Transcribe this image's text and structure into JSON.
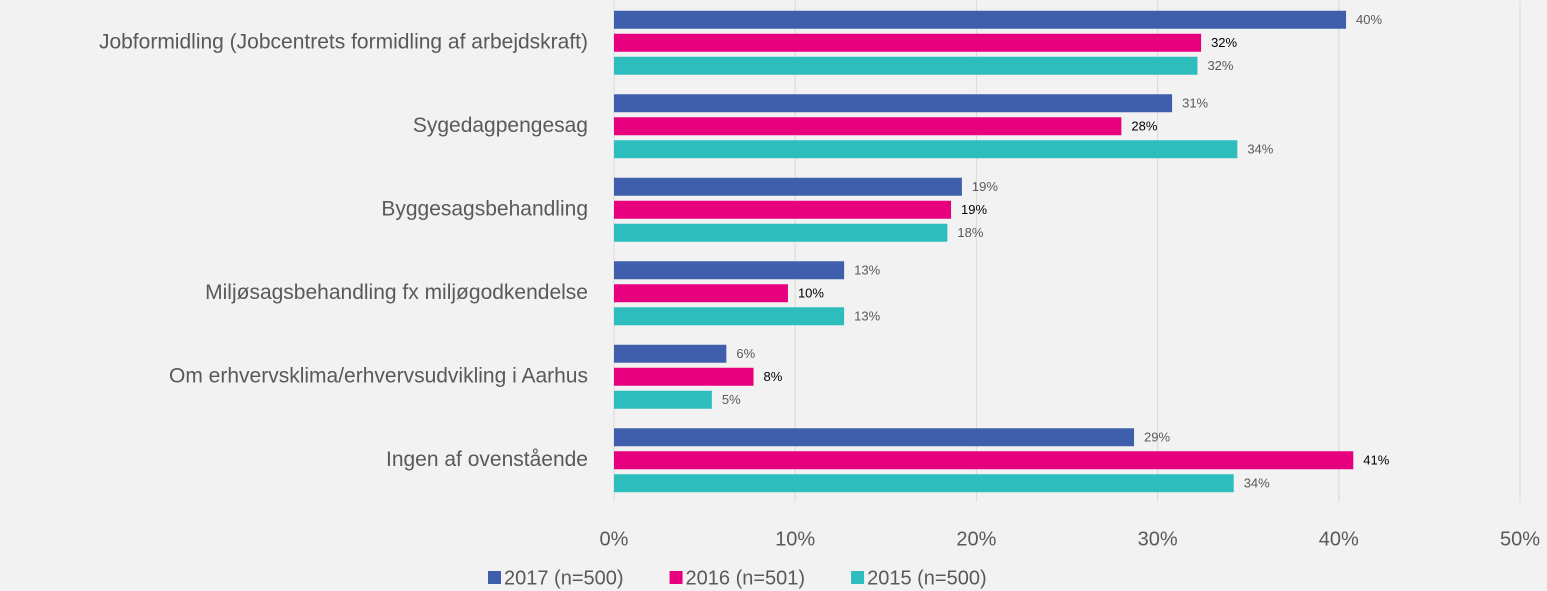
{
  "chart_data": {
    "type": "bar",
    "orientation": "horizontal",
    "categories": [
      "Jobformidling (Jobcentrets formidling af arbejdskraft)",
      "Sygedagpengesag",
      "Byggesagsbehandling",
      "Miljøsagsbehandling fx miljøgodkendelse",
      "Om erhvervsklima/erhvervsudvikling i Aarhus",
      "Ingen af ovenstående"
    ],
    "series": [
      {
        "name": "2017 (n=500)",
        "color": "#3f5fad",
        "values": [
          40.4,
          30.8,
          19.2,
          12.7,
          6.2,
          28.7
        ],
        "value_labels": [
          "40%",
          "31%",
          "19%",
          "13%",
          "6%",
          "29%"
        ]
      },
      {
        "name": "2016 (n=501)",
        "color": "#e6007e",
        "values": [
          32.4,
          28.0,
          18.6,
          9.6,
          7.7,
          40.8
        ],
        "value_labels": [
          "32%",
          "28%",
          "19%",
          "10%",
          "8%",
          "41%"
        ]
      },
      {
        "name": "2015 (n=500)",
        "color": "#2ebdbd",
        "values": [
          32.2,
          34.4,
          18.4,
          12.7,
          5.4,
          34.2
        ],
        "value_labels": [
          "32%",
          "34%",
          "18%",
          "13%",
          "5%",
          "34%"
        ]
      }
    ],
    "xlim": [
      0,
      50
    ],
    "xticks": [
      {
        "value": 0,
        "label": "0%"
      },
      {
        "value": 10,
        "label": "10%"
      },
      {
        "value": 20,
        "label": "20%"
      },
      {
        "value": 30,
        "label": "30%"
      },
      {
        "value": 40,
        "label": "40%"
      },
      {
        "value": 50,
        "label": "50%"
      }
    ],
    "grid": true,
    "legend": "bottom"
  }
}
